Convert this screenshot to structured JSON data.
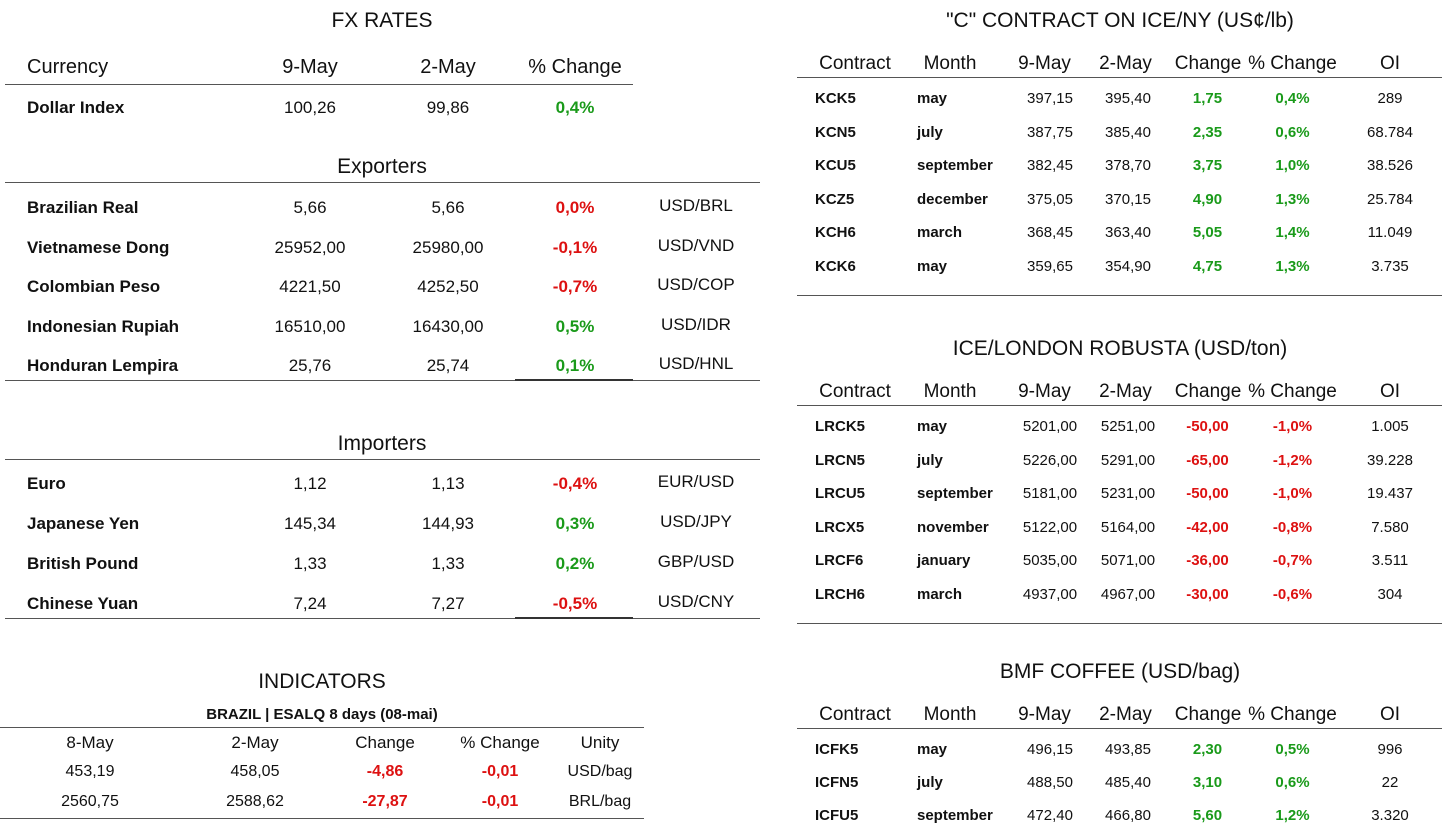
{
  "fx": {
    "title": "FX RATES",
    "headers": {
      "currency": "Currency",
      "d1": "9-May",
      "d2": "2-May",
      "chg": "% Change"
    },
    "dollar_index": {
      "name": "Dollar Index",
      "v1": "100,26",
      "v2": "99,86",
      "chg": "0,4%"
    },
    "exporters_title": "Exporters",
    "exporters": [
      {
        "name": "Brazilian Real",
        "v1": "5,66",
        "v2": "5,66",
        "chg": "0,0%",
        "pair": "USD/BRL",
        "sign": "neg"
      },
      {
        "name": "Vietnamese Dong",
        "v1": "25952,00",
        "v2": "25980,00",
        "chg": "-0,1%",
        "pair": "USD/VND",
        "sign": "neg"
      },
      {
        "name": "Colombian Peso",
        "v1": "4221,50",
        "v2": "4252,50",
        "chg": "-0,7%",
        "pair": "USD/COP",
        "sign": "neg"
      },
      {
        "name": "Indonesian Rupiah",
        "v1": "16510,00",
        "v2": "16430,00",
        "chg": "0,5%",
        "pair": "USD/IDR",
        "sign": "pos"
      },
      {
        "name": "Honduran Lempira",
        "v1": "25,76",
        "v2": "25,74",
        "chg": "0,1%",
        "pair": "USD/HNL",
        "sign": "pos"
      }
    ],
    "importers_title": "Importers",
    "importers": [
      {
        "name": "Euro",
        "v1": "1,12",
        "v2": "1,13",
        "chg": "-0,4%",
        "pair": "EUR/USD",
        "sign": "neg"
      },
      {
        "name": "Japanese Yen",
        "v1": "145,34",
        "v2": "144,93",
        "chg": "0,3%",
        "pair": "USD/JPY",
        "sign": "pos"
      },
      {
        "name": "British Pound",
        "v1": "1,33",
        "v2": "1,33",
        "chg": "0,2%",
        "pair": "GBP/USD",
        "sign": "pos"
      },
      {
        "name": "Chinese Yuan",
        "v1": "7,24",
        "v2": "7,27",
        "chg": "-0,5%",
        "pair": "USD/CNY",
        "sign": "neg"
      }
    ]
  },
  "indicators": {
    "title": "INDICATORS",
    "subtitle": "BRAZIL | ESALQ 8 days (08-mai)",
    "headers": [
      "8-May",
      "2-May",
      "Change",
      "% Change",
      "Unity"
    ],
    "rows": [
      [
        "453,19",
        "458,05",
        "-4,86",
        "-0,01",
        "USD/bag"
      ],
      [
        "2560,75",
        "2588,62",
        "-27,87",
        "-0,01",
        "BRL/bag"
      ]
    ]
  },
  "ice_ny": {
    "title": "\"C\" CONTRACT ON ICE/NY (US¢/lb)",
    "headers": [
      "Contract",
      "Month",
      "9-May",
      "2-May",
      "Change",
      "% Change",
      "OI"
    ],
    "rows": [
      [
        "KCK5",
        "may",
        "397,15",
        "395,40",
        "1,75",
        "0,4%",
        "289"
      ],
      [
        "KCN5",
        "july",
        "387,75",
        "385,40",
        "2,35",
        "0,6%",
        "68.784"
      ],
      [
        "KCU5",
        "september",
        "382,45",
        "378,70",
        "3,75",
        "1,0%",
        "38.526"
      ],
      [
        "KCZ5",
        "december",
        "375,05",
        "370,15",
        "4,90",
        "1,3%",
        "25.784"
      ],
      [
        "KCH6",
        "march",
        "368,45",
        "363,40",
        "5,05",
        "1,4%",
        "11.049"
      ],
      [
        "KCK6",
        "may",
        "359,65",
        "354,90",
        "4,75",
        "1,3%",
        "3.735"
      ]
    ],
    "sign": "pos"
  },
  "robusta": {
    "title": "ICE/LONDON ROBUSTA (USD/ton)",
    "headers": [
      "Contract",
      "Month",
      "9-May",
      "2-May",
      "Change",
      "% Change",
      "OI"
    ],
    "rows": [
      [
        "LRCK5",
        "may",
        "5201,00",
        "5251,00",
        "-50,00",
        "-1,0%",
        "1.005"
      ],
      [
        "LRCN5",
        "july",
        "5226,00",
        "5291,00",
        "-65,00",
        "-1,2%",
        "39.228"
      ],
      [
        "LRCU5",
        "september",
        "5181,00",
        "5231,00",
        "-50,00",
        "-1,0%",
        "19.437"
      ],
      [
        "LRCX5",
        "november",
        "5122,00",
        "5164,00",
        "-42,00",
        "-0,8%",
        "7.580"
      ],
      [
        "LRCF6",
        "january",
        "5035,00",
        "5071,00",
        "-36,00",
        "-0,7%",
        "3.511"
      ],
      [
        "LRCH6",
        "march",
        "4937,00",
        "4967,00",
        "-30,00",
        "-0,6%",
        "304"
      ]
    ],
    "sign": "neg"
  },
  "bmf": {
    "title": "BMF COFFEE (USD/bag)",
    "headers": [
      "Contract",
      "Month",
      "9-May",
      "2-May",
      "Change",
      "% Change",
      "OI"
    ],
    "rows": [
      [
        "ICFK5",
        "may",
        "496,15",
        "493,85",
        "2,30",
        "0,5%",
        "996"
      ],
      [
        "ICFN5",
        "july",
        "488,50",
        "485,40",
        "3,10",
        "0,6%",
        "22"
      ],
      [
        "ICFU5",
        "september",
        "472,40",
        "466,80",
        "5,60",
        "1,2%",
        "3.320"
      ]
    ],
    "sign": "pos"
  },
  "colors": {
    "positive": "#1a9a1a",
    "negative": "#dd1111"
  }
}
